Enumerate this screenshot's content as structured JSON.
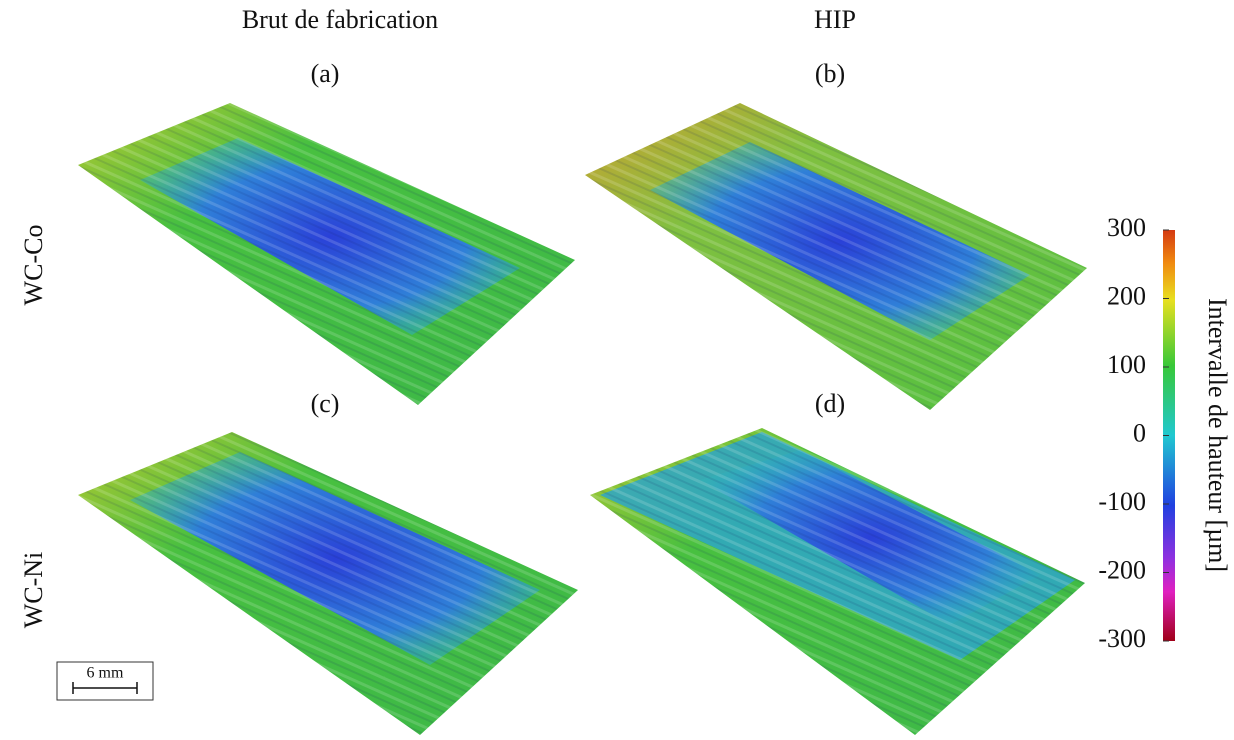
{
  "columns": [
    "Brut de fabrication",
    "HIP"
  ],
  "panels": [
    "(a)",
    "(b)",
    "(c)",
    "(d)"
  ],
  "rows": [
    "WC-Co",
    "WC-Ni"
  ],
  "colorbar": {
    "label": "Intervalle de hauteur [µm]",
    "lim": [
      -300,
      300
    ],
    "ticks": [
      300,
      200,
      100,
      0,
      -100,
      -200,
      -300
    ]
  },
  "scale_bar": "6 mm"
}
